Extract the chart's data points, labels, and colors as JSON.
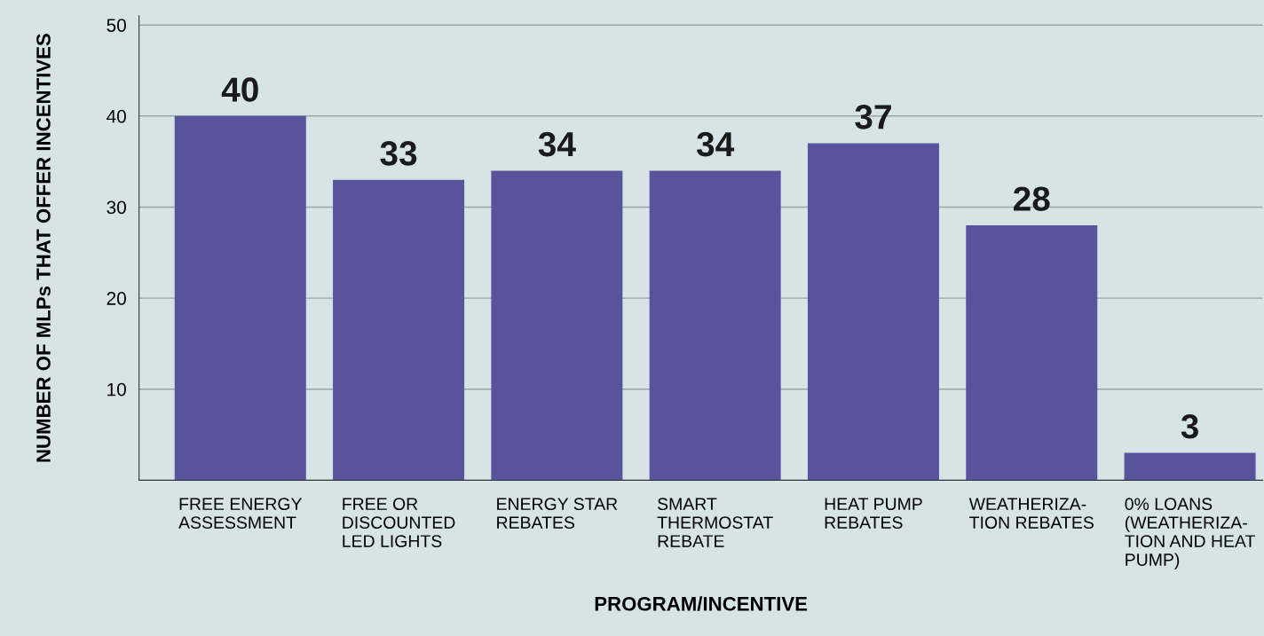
{
  "chart_data": {
    "type": "bar",
    "xlabel": "PROGRAM/INCENTIVE",
    "ylabel": "NUMBER OF MLPs THAT OFFER INCENTIVES",
    "categories": [
      "FREE ENERGY\nASSESSMENT",
      "FREE OR\nDISCOUNTED\nLED LIGHTS",
      "ENERGY STAR\nREBATES",
      "SMART\nTHERMOSTAT\nREBATE",
      "HEAT PUMP\nREBATES",
      "WEATHERIZA-\nTION REBATES",
      "0% LOANS\n(WEATHERIZA-\nTION AND HEAT\nPUMP)"
    ],
    "values": [
      40,
      33,
      34,
      34,
      37,
      28,
      3
    ],
    "color": "#58539a",
    "ylim": [
      0,
      51
    ],
    "yticks": [
      10,
      20,
      30,
      40,
      50
    ],
    "grid": "y",
    "data_labels": true
  }
}
